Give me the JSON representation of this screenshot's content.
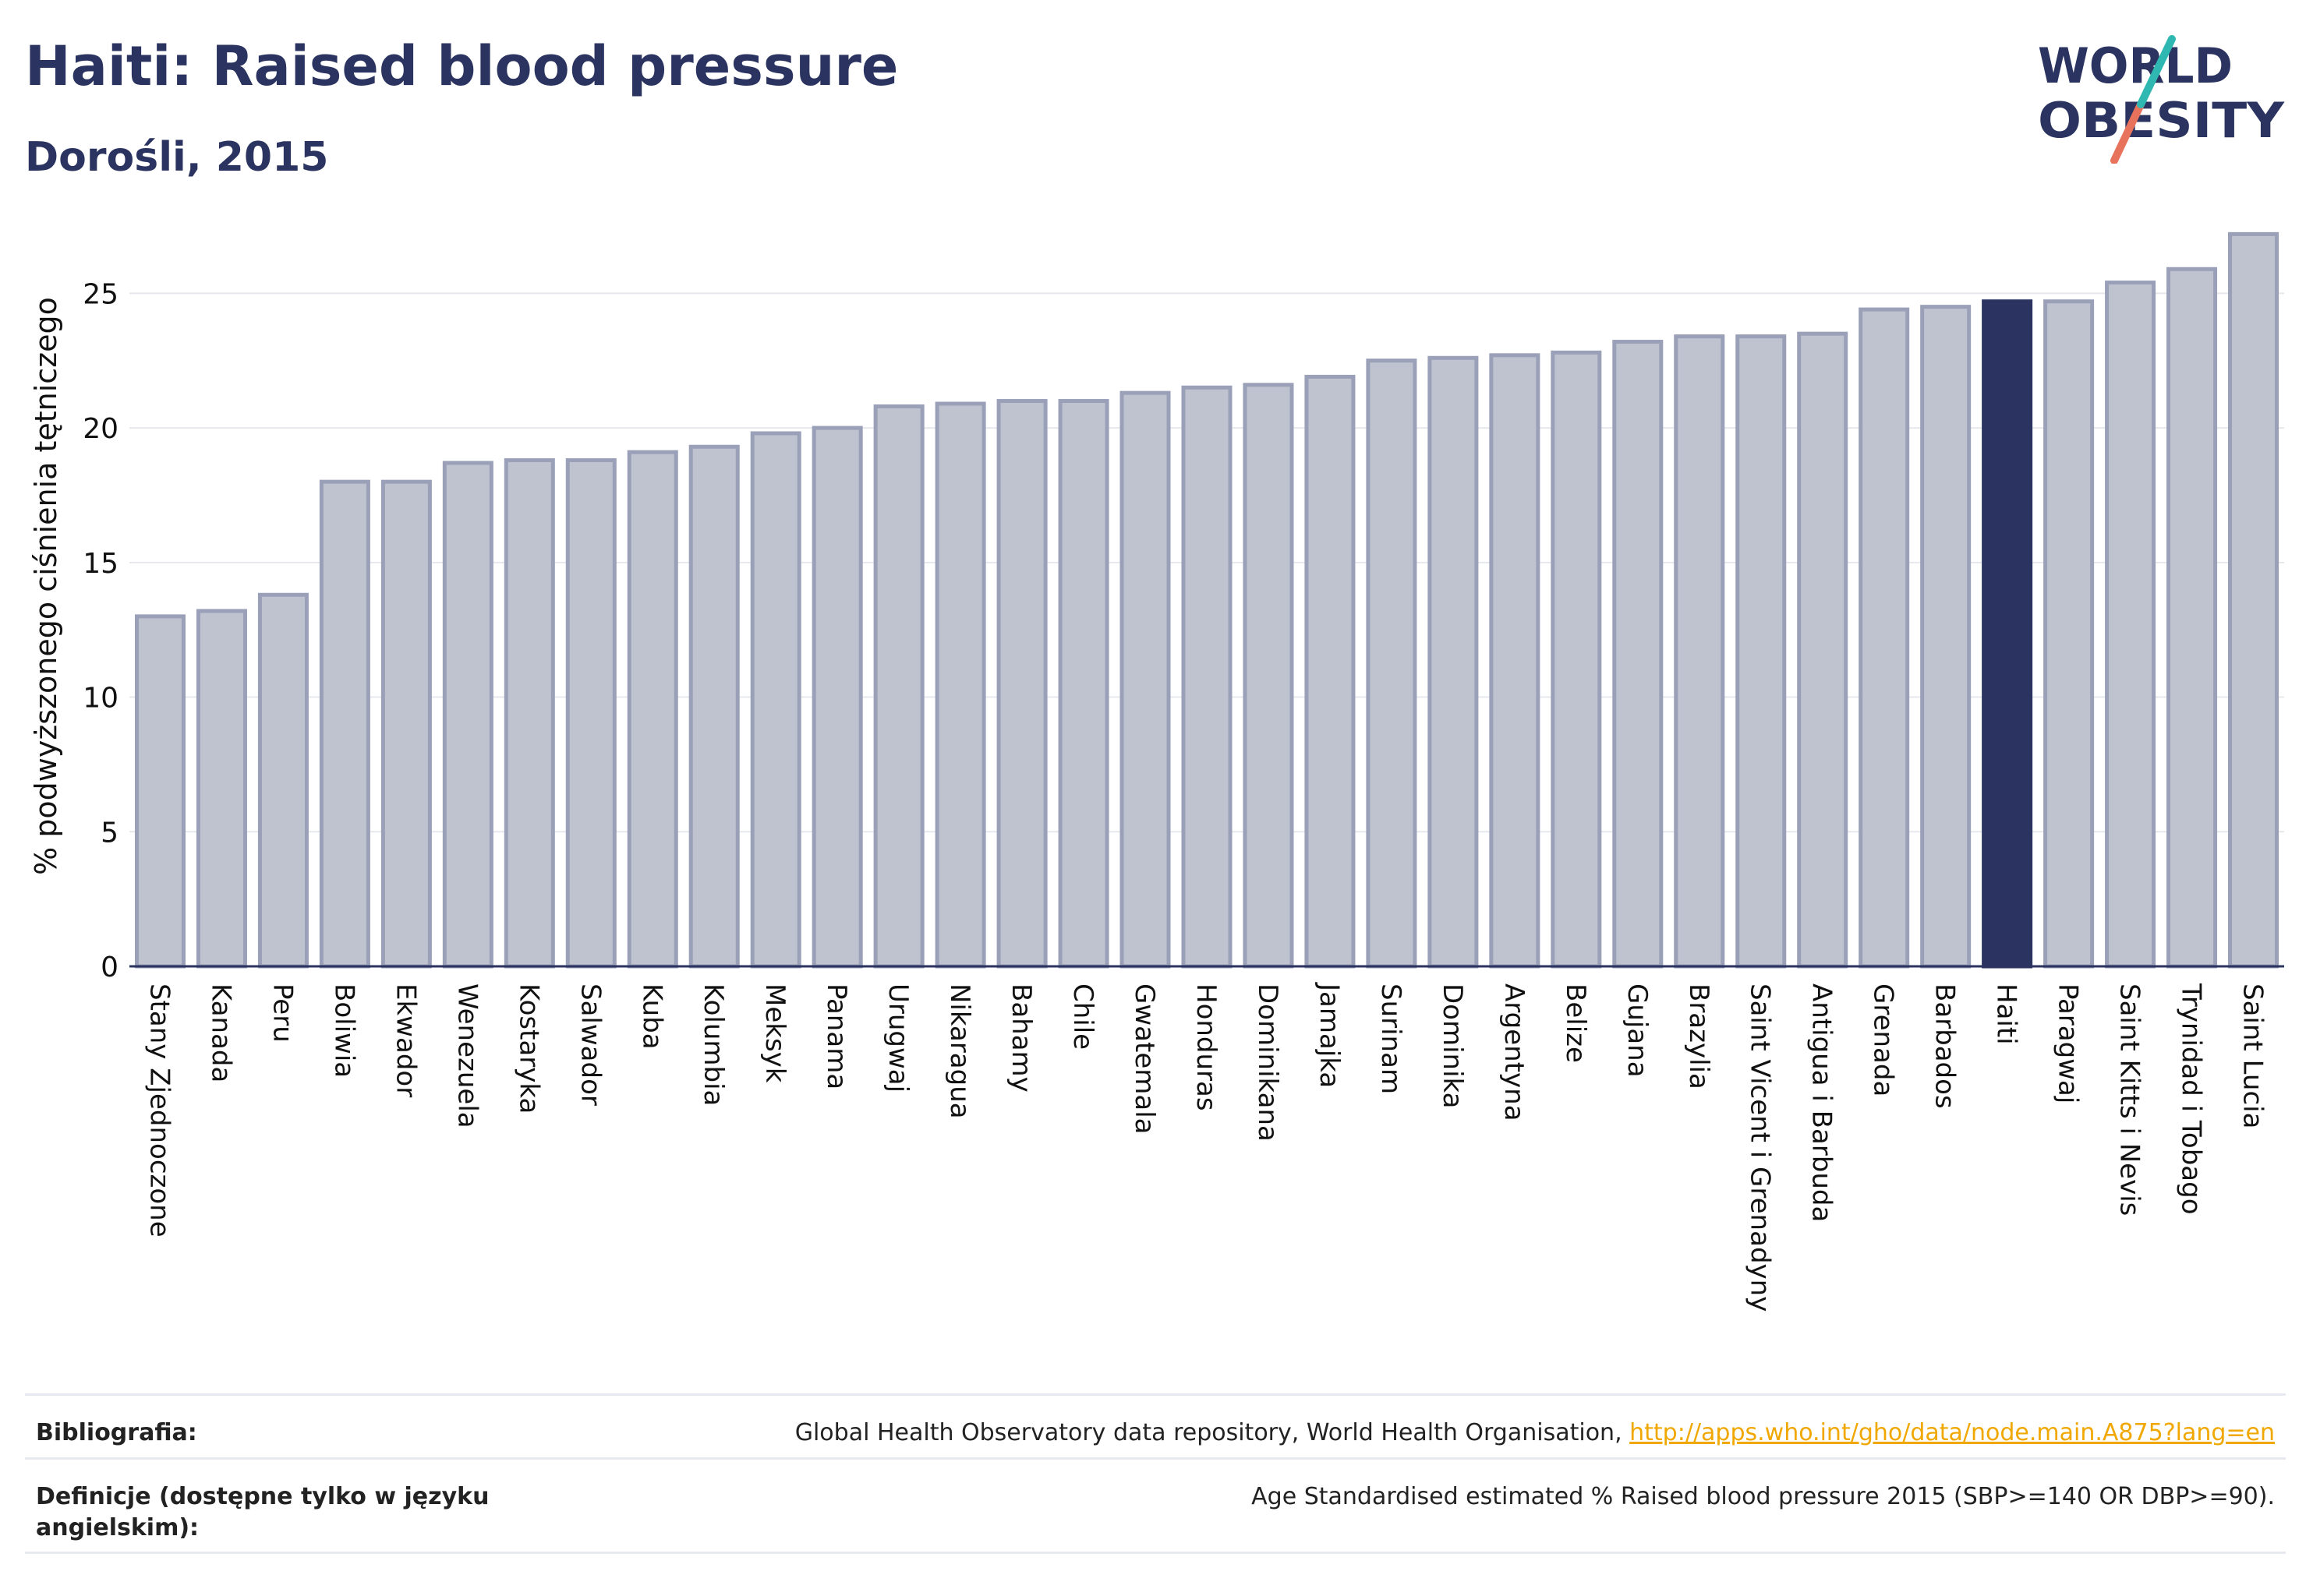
{
  "header": {
    "title": "Haiti: Raised blood pressure",
    "subtitle": "Dorośli, 2015"
  },
  "logo": {
    "line1": "WORLD",
    "line2": "OBESITY"
  },
  "colors": {
    "bar": "#bfc3cf",
    "bar_border": "#9aa0b8",
    "highlight": "#2b3460",
    "axis": "#2b3460",
    "grid": "#e6e8ee",
    "link": "#f0a800"
  },
  "chart_data": {
    "type": "bar",
    "title": "Haiti: Raised blood pressure",
    "subtitle": "Dorośli, 2015",
    "ylabel": "% podwyższonego ciśnienia tętniczego",
    "xlabel": "",
    "ylim": [
      0,
      27.5
    ],
    "yticks": [
      0,
      5,
      10,
      15,
      20,
      25
    ],
    "grid": true,
    "highlight": "Haiti",
    "categories": [
      "Stany Zjednoczone",
      "Kanada",
      "Peru",
      "Boliwia",
      "Ekwador",
      "Wenezuela",
      "Kostaryka",
      "Salwador",
      "Kuba",
      "Kolumbia",
      "Meksyk",
      "Panama",
      "Urugwaj",
      "Nikaragua",
      "Bahamy",
      "Chile",
      "Gwatemala",
      "Honduras",
      "Dominikana",
      "Jamajka",
      "Surinam",
      "Dominika",
      "Argentyna",
      "Belize",
      "Gujana",
      "Brazylia",
      "Saint Vicent i Grenadyny",
      "Antigua i Barbuda",
      "Grenada",
      "Barbados",
      "Haiti",
      "Paragwaj",
      "Saint Kitts i Nevis",
      "Trynidad i Tobago",
      "Saint Lucia"
    ],
    "values": [
      13.0,
      13.2,
      13.8,
      18.0,
      18.0,
      18.7,
      18.8,
      18.8,
      19.1,
      19.3,
      19.8,
      20.0,
      20.8,
      20.9,
      21.0,
      21.0,
      21.3,
      21.5,
      21.6,
      21.9,
      22.5,
      22.6,
      22.7,
      22.8,
      23.2,
      23.4,
      23.4,
      23.5,
      24.4,
      24.5,
      24.7,
      24.7,
      25.4,
      25.9,
      27.2
    ]
  },
  "footer": {
    "bibliography_label": "Bibliografia:",
    "bibliography_text": "Global Health Observatory data repository, World Health Organisation, ",
    "bibliography_link": "http://apps.who.int/gho/data/node.main.A875?lang=en",
    "definitions_label": "Definicje (dostępne tylko w języku angielskim):",
    "definitions_text": "Age Standardised estimated % Raised blood pressure 2015 (SBP>=140 OR DBP>=90)."
  }
}
